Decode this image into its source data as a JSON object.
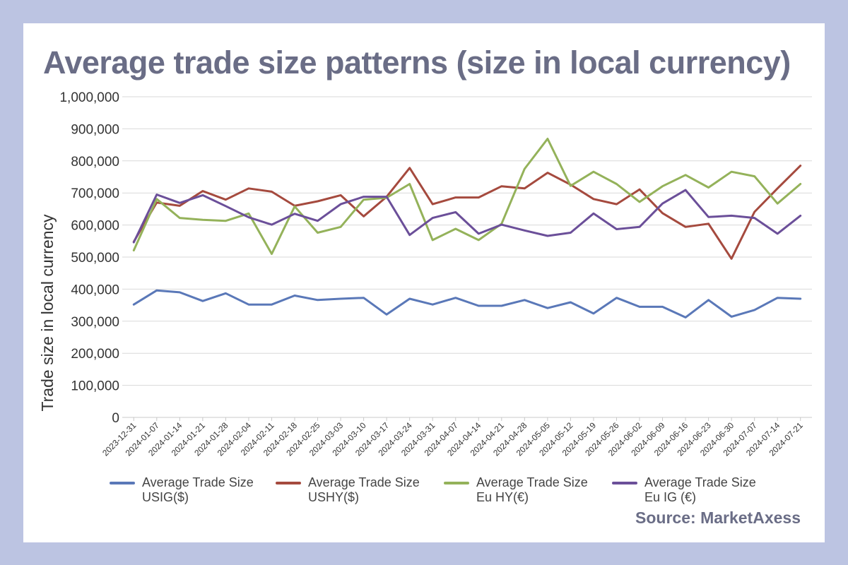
{
  "title": "Average trade size patterns (size in local currency)",
  "source": "Source: MarketAxess",
  "colors": {
    "background": "#bcc4e2",
    "title": "#6a6d86",
    "grid": "#d9d9d9"
  },
  "chart_data": {
    "type": "line",
    "ylabel": "Trade size in local currency",
    "xlabel": "",
    "ylim": [
      0,
      1000000
    ],
    "yticks": [
      0,
      100000,
      200000,
      300000,
      400000,
      500000,
      600000,
      700000,
      800000,
      900000,
      1000000
    ],
    "ytick_labels": [
      "0",
      "100,000",
      "200,000",
      "300,000",
      "400,000",
      "500,000",
      "600,000",
      "700,000",
      "800,000",
      "900,000",
      "1,000,000"
    ],
    "grid": true,
    "legend_position": "bottom",
    "categories": [
      "2023-12-31",
      "2024-01-07",
      "2024-01-14",
      "2024-01-21",
      "2024-01-28",
      "2024-02-04",
      "2024-02-11",
      "2024-02-18",
      "2024-02-25",
      "2024-03-03",
      "2024-03-10",
      "2024-03-17",
      "2024-03-24",
      "2024-03-31",
      "2024-04-07",
      "2024-04-14",
      "2024-04-21",
      "2024-04-28",
      "2024-05-05",
      "2024-05-12",
      "2024-05-19",
      "2024-05-26",
      "2024-06-02",
      "2024-06-09",
      "2024-06-16",
      "2024-06-23",
      "2024-06-30",
      "2024-07-07",
      "2024-07-14",
      "2024-07-21"
    ],
    "series": [
      {
        "name": "Average Trade Size USIG($)",
        "legend_lines": [
          "Average Trade Size",
          "USIG($)"
        ],
        "color": "#5a78b8",
        "values": [
          352000,
          396000,
          390000,
          363000,
          387000,
          352000,
          352000,
          380000,
          366000,
          370000,
          373000,
          321000,
          370000,
          352000,
          373000,
          348000,
          348000,
          366000,
          341000,
          359000,
          324000,
          373000,
          345000,
          345000,
          312000,
          366000,
          314000,
          335000,
          373000,
          370000
        ]
      },
      {
        "name": "Average Trade Size USHY($)",
        "legend_lines": [
          "Average Trade Size",
          "USHY($)"
        ],
        "color": "#a54a3e",
        "values": [
          548000,
          670000,
          660000,
          706000,
          679000,
          714000,
          704000,
          660000,
          674000,
          693000,
          627000,
          688000,
          778000,
          665000,
          686000,
          686000,
          721000,
          714000,
          763000,
          726000,
          681000,
          665000,
          711000,
          637000,
          594000,
          604000,
          495000,
          641000,
          714000,
          785000
        ]
      },
      {
        "name": "Average Trade Size Eu HY(€)",
        "legend_lines": [
          "Average Trade Size",
          "Eu HY(€)"
        ],
        "color": "#94b25a",
        "values": [
          521000,
          681000,
          622000,
          616000,
          613000,
          636000,
          510000,
          658000,
          576000,
          594000,
          679000,
          685000,
          728000,
          553000,
          588000,
          553000,
          604000,
          775000,
          869000,
          722000,
          766000,
          728000,
          672000,
          721000,
          756000,
          717000,
          766000,
          752000,
          667000,
          728000
        ]
      },
      {
        "name": "Average Trade Size Eu IG (€)",
        "legend_lines": [
          "Average Trade Size",
          "Eu IG (€)"
        ],
        "color": "#6b4f99",
        "values": [
          546000,
          695000,
          669000,
          693000,
          659000,
          624000,
          601000,
          635000,
          613000,
          665000,
          688000,
          688000,
          569000,
          622000,
          640000,
          573000,
          601000,
          583000,
          566000,
          576000,
          636000,
          587000,
          594000,
          667000,
          709000,
          625000,
          629000,
          622000,
          573000,
          629000
        ]
      }
    ]
  }
}
